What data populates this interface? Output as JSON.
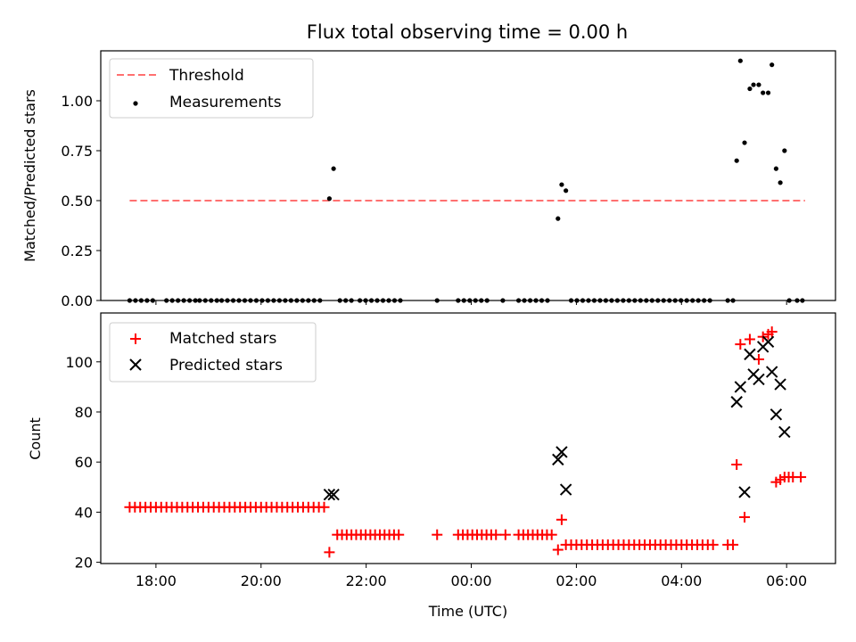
{
  "chart_data": [
    {
      "type": "scatter",
      "title": "Flux total observing time = 0.00 h",
      "xlabel": "",
      "ylabel": "Matched/Predicted stars",
      "xlim": [
        16.95,
        30.93
      ],
      "ylim": [
        0,
        1.25
      ],
      "yticks": [
        0.0,
        0.25,
        0.5,
        0.75,
        1.0
      ],
      "ytick_labels": [
        "0.00",
        "0.25",
        "0.50",
        "0.75",
        "1.00"
      ],
      "legend_position": "top-left",
      "threshold": {
        "name": "Threshold",
        "y": 0.5,
        "x_range": [
          17.5,
          30.35
        ],
        "color": "#ff7070"
      },
      "series": [
        {
          "name": "Measurements",
          "color": "#000000",
          "points": [
            [
              21.3,
              0.51
            ],
            [
              21.38,
              0.66
            ],
            [
              25.65,
              0.41
            ],
            [
              25.72,
              0.58
            ],
            [
              25.8,
              0.55
            ],
            [
              29.05,
              0.7
            ],
            [
              29.12,
              1.2
            ],
            [
              29.2,
              0.79
            ],
            [
              29.3,
              1.06
            ],
            [
              29.37,
              1.08
            ],
            [
              29.47,
              1.08
            ],
            [
              29.55,
              1.04
            ],
            [
              29.65,
              1.04
            ],
            [
              29.72,
              1.18
            ],
            [
              29.8,
              0.66
            ],
            [
              29.88,
              0.59
            ],
            [
              29.96,
              0.75
            ]
          ],
          "zero_segments": [
            [
              17.5,
              18.0,
              0.11
            ],
            [
              18.2,
              18.75,
              0.11
            ],
            [
              18.83,
              19.2,
              0.11
            ],
            [
              19.25,
              21.2,
              0.11
            ],
            [
              21.5,
              21.8,
              0.11
            ],
            [
              21.88,
              22.68,
              0.11
            ],
            [
              23.35,
              23.35,
              1
            ],
            [
              23.75,
              24.35,
              0.11
            ],
            [
              24.6,
              24.7,
              1
            ],
            [
              24.9,
              25.55,
              0.11
            ],
            [
              25.9,
              28.6,
              0.11
            ],
            [
              28.88,
              28.98,
              0.1
            ],
            [
              30.05,
              30.2,
              0.15
            ],
            [
              30.3,
              30.3,
              1
            ]
          ]
        }
      ]
    },
    {
      "type": "scatter",
      "title": "",
      "xlabel": "Time (UTC)",
      "ylabel": "Count",
      "xlim": [
        16.95,
        30.93
      ],
      "ylim": [
        19.5,
        119.5
      ],
      "yticks": [
        20,
        40,
        60,
        80,
        100
      ],
      "ytick_labels": [
        "20",
        "40",
        "60",
        "80",
        "100"
      ],
      "xticks": [
        18,
        20,
        22,
        24,
        26,
        28,
        30
      ],
      "xtick_labels": [
        "18:00",
        "20:00",
        "22:00",
        "00:00",
        "02:00",
        "04:00",
        "06:00"
      ],
      "legend_position": "top-left",
      "series": [
        {
          "name": "Matched stars",
          "marker": "plus",
          "color": "#ff0000",
          "points": [
            [
              21.3,
              24
            ],
            [
              25.65,
              25
            ],
            [
              25.72,
              37
            ],
            [
              29.05,
              59
            ],
            [
              29.12,
              107
            ],
            [
              29.2,
              38
            ],
            [
              29.3,
              109
            ],
            [
              29.47,
              101
            ],
            [
              29.55,
              110
            ],
            [
              29.65,
              111
            ],
            [
              29.72,
              112
            ],
            [
              29.8,
              52
            ],
            [
              29.88,
              53
            ],
            [
              29.96,
              54
            ],
            [
              30.04,
              54
            ],
            [
              30.12,
              54
            ],
            [
              30.27,
              54
            ]
          ],
          "runs": [
            [
              17.5,
              21.25,
              0.1,
              42
            ],
            [
              21.45,
              22.68,
              0.09,
              31
            ],
            [
              23.35,
              23.35,
              1,
              31
            ],
            [
              23.75,
              24.5,
              0.09,
              31
            ],
            [
              24.65,
              24.65,
              1,
              31
            ],
            [
              24.9,
              25.55,
              0.09,
              31
            ],
            [
              25.8,
              28.6,
              0.1,
              27
            ],
            [
              28.88,
              28.98,
              0.1,
              27
            ]
          ]
        },
        {
          "name": "Predicted stars",
          "marker": "x",
          "color": "#000000",
          "points": [
            [
              21.3,
              47
            ],
            [
              21.38,
              47
            ],
            [
              25.65,
              61
            ],
            [
              25.72,
              64
            ],
            [
              25.8,
              49
            ],
            [
              29.05,
              84
            ],
            [
              29.12,
              90
            ],
            [
              29.2,
              48
            ],
            [
              29.3,
              103
            ],
            [
              29.37,
              95
            ],
            [
              29.47,
              93
            ],
            [
              29.55,
              106
            ],
            [
              29.65,
              108
            ],
            [
              29.72,
              96
            ],
            [
              29.8,
              79
            ],
            [
              29.88,
              91
            ],
            [
              29.96,
              72
            ]
          ]
        }
      ]
    }
  ]
}
